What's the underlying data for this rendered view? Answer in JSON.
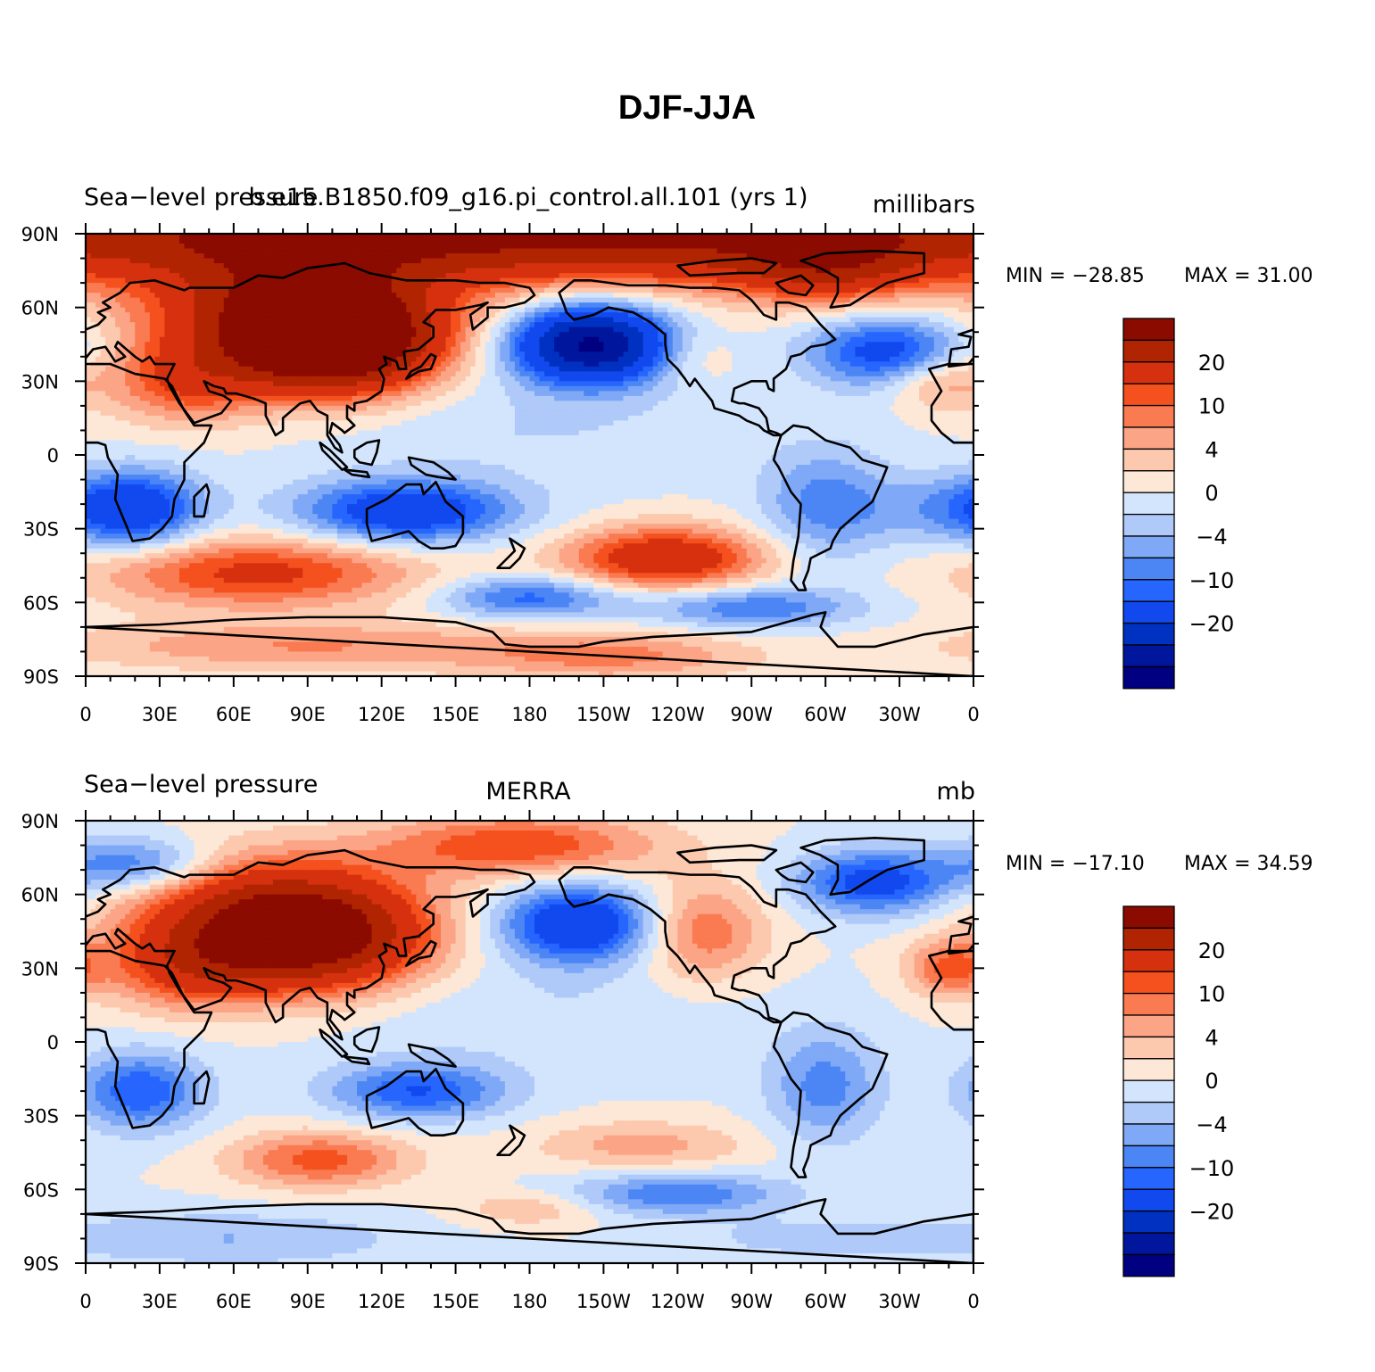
{
  "figure": {
    "title": "DJF-JJA"
  },
  "colors": {
    "levels": [
      "#000080",
      "#00169c",
      "#0131c0",
      "#1149ef",
      "#2666ff",
      "#4c86f5",
      "#7fa9f6",
      "#afc9f9",
      "#d3e5fd",
      "#fde7d6",
      "#fcc8ae",
      "#fca586",
      "#fa7a51",
      "#f4511f",
      "#d6310e",
      "#b12402",
      "#8b0b00"
    ],
    "coastline": "#000000"
  },
  "colorbar": {
    "labels": [
      {
        "text": "20",
        "boundary": 2
      },
      {
        "text": "10",
        "boundary": 4
      },
      {
        "text": "4",
        "boundary": 6
      },
      {
        "text": "0",
        "boundary": 8
      },
      {
        "text": "−4",
        "boundary": 10
      },
      {
        "text": "−10",
        "boundary": 12
      },
      {
        "text": "−20",
        "boundary": 14
      }
    ]
  },
  "xticks": [
    "0",
    "30E",
    "60E",
    "90E",
    "120E",
    "150E",
    "180",
    "150W",
    "120W",
    "90W",
    "60W",
    "30W",
    "0"
  ],
  "yticks": [
    "90N",
    "60N",
    "30N",
    "0",
    "30S",
    "60S",
    "90S"
  ],
  "panels": [
    {
      "left_text": "Sea−level pressure",
      "center_text": "b.e15.B1850.f09_g16.pi_control.all.101 (yrs 1)",
      "right_text": "millibars",
      "min_text": "MIN = −28.85",
      "max_text": "MAX =   31.00"
    },
    {
      "left_text": "Sea−level pressure",
      "center_text": "MERRA",
      "right_text": "mb",
      "min_text": "MIN = −17.10",
      "max_text": "MAX =   34.59"
    }
  ],
  "chart_data": [
    {
      "type": "heatmap",
      "title": "DJF-JJA",
      "subtitle": "b.e15.B1850.f09_g16.pi_control.all.101 (yrs 1)",
      "variable": "Sea−level pressure",
      "units": "millibars",
      "x_range": [
        0,
        360
      ],
      "y_range": [
        -90,
        90
      ],
      "min": -28.85,
      "max": 31.0,
      "contour_levels": [
        -25,
        -20,
        -15,
        -10,
        -8,
        -6,
        -4,
        -2,
        0,
        2,
        4,
        6,
        8,
        10,
        15,
        20
      ],
      "centers": [
        {
          "lon": 100,
          "lat": 45,
          "value": 26,
          "sx": 28,
          "sy": 14
        },
        {
          "lon": 85,
          "lat": 58,
          "value": 18,
          "sx": 40,
          "sy": 16
        },
        {
          "lon": 40,
          "lat": 30,
          "value": 9,
          "sx": 22,
          "sy": 12
        },
        {
          "lon": 180,
          "lat": 90,
          "value": 22,
          "sx": 250,
          "sy": 14
        },
        {
          "lon": 300,
          "lat": 75,
          "value": 9,
          "sx": 25,
          "sy": 10
        },
        {
          "lon": 245,
          "lat": 40,
          "value": 3,
          "sx": 12,
          "sy": 8
        },
        {
          "lon": 345,
          "lat": 30,
          "value": 6,
          "sx": 14,
          "sy": 8
        },
        {
          "lon": 205,
          "lat": 45,
          "value": -26,
          "sx": 22,
          "sy": 11
        },
        {
          "lon": 325,
          "lat": 42,
          "value": -12,
          "sx": 22,
          "sy": 10
        },
        {
          "lon": 180,
          "lat": 10,
          "value": -2,
          "sx": 60,
          "sy": 15
        },
        {
          "lon": 130,
          "lat": -23,
          "value": -14,
          "sx": 30,
          "sy": 9
        },
        {
          "lon": 22,
          "lat": -22,
          "value": -11,
          "sx": 18,
          "sy": 11
        },
        {
          "lon": 300,
          "lat": -20,
          "value": -7,
          "sx": 18,
          "sy": 16
        },
        {
          "lon": 355,
          "lat": -22,
          "value": -6,
          "sx": 25,
          "sy": 10
        },
        {
          "lon": 235,
          "lat": -42,
          "value": 14,
          "sx": 28,
          "sy": 9
        },
        {
          "lon": 70,
          "lat": -48,
          "value": 11,
          "sx": 45,
          "sy": 10
        },
        {
          "lon": 180,
          "lat": -58,
          "value": -9,
          "sx": 25,
          "sy": 6
        },
        {
          "lon": 270,
          "lat": -62,
          "value": -8,
          "sx": 30,
          "sy": 6
        },
        {
          "lon": 90,
          "lat": -78,
          "value": 6,
          "sx": 70,
          "sy": 7
        },
        {
          "lon": 215,
          "lat": -82,
          "value": 6,
          "sx": 40,
          "sy": 7
        }
      ]
    },
    {
      "type": "heatmap",
      "title": "DJF-JJA",
      "subtitle": "MERRA",
      "variable": "Sea−level pressure",
      "units": "mb",
      "x_range": [
        0,
        360
      ],
      "y_range": [
        -90,
        90
      ],
      "min": -17.1,
      "max": 34.59,
      "contour_levels": [
        -25,
        -20,
        -15,
        -10,
        -8,
        -6,
        -4,
        -2,
        0,
        2,
        4,
        6,
        8,
        10,
        15,
        20
      ],
      "centers": [
        {
          "lon": 90,
          "lat": 42,
          "value": 22,
          "sx": 32,
          "sy": 15
        },
        {
          "lon": 70,
          "lat": 55,
          "value": 11,
          "sx": 40,
          "sy": 16
        },
        {
          "lon": 40,
          "lat": 30,
          "value": 9,
          "sx": 22,
          "sy": 12
        },
        {
          "lon": 175,
          "lat": 80,
          "value": 10,
          "sx": 40,
          "sy": 9
        },
        {
          "lon": 250,
          "lat": 45,
          "value": 8,
          "sx": 18,
          "sy": 14
        },
        {
          "lon": 350,
          "lat": 30,
          "value": 8,
          "sx": 12,
          "sy": 8
        },
        {
          "lon": 20,
          "lat": 72,
          "value": -9,
          "sx": 22,
          "sy": 8
        },
        {
          "lon": 200,
          "lat": 48,
          "value": -15,
          "sx": 22,
          "sy": 11
        },
        {
          "lon": 320,
          "lat": 65,
          "value": -12,
          "sx": 22,
          "sy": 9
        },
        {
          "lon": 180,
          "lat": 10,
          "value": -2,
          "sx": 60,
          "sy": 15
        },
        {
          "lon": 135,
          "lat": -20,
          "value": -10,
          "sx": 25,
          "sy": 8
        },
        {
          "lon": 22,
          "lat": -20,
          "value": -10,
          "sx": 18,
          "sy": 11
        },
        {
          "lon": 300,
          "lat": -18,
          "value": -7,
          "sx": 16,
          "sy": 16
        },
        {
          "lon": 95,
          "lat": -48,
          "value": 9,
          "sx": 25,
          "sy": 8
        },
        {
          "lon": 225,
          "lat": -42,
          "value": 5,
          "sx": 30,
          "sy": 7
        },
        {
          "lon": 240,
          "lat": -62,
          "value": -8,
          "sx": 30,
          "sy": 6
        },
        {
          "lon": 180,
          "lat": -68,
          "value": 4,
          "sx": 20,
          "sy": 5
        },
        {
          "lon": 60,
          "lat": -80,
          "value": -4,
          "sx": 50,
          "sy": 8
        },
        {
          "lon": 300,
          "lat": -80,
          "value": -3,
          "sx": 40,
          "sy": 6
        }
      ]
    }
  ]
}
